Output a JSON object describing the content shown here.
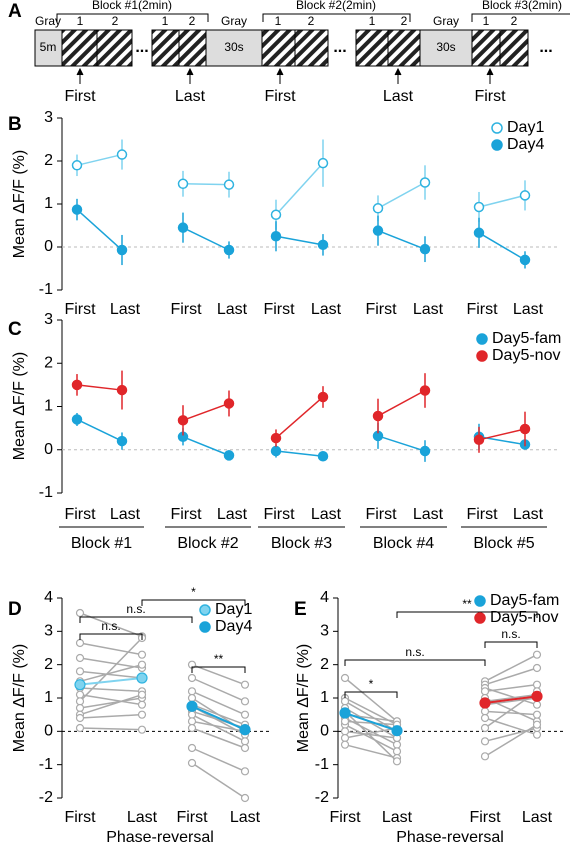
{
  "protocol": {
    "panel": "A",
    "gray": "Gray",
    "gray_first": "5m",
    "gray_between": "30s",
    "blocks": [
      "Block #1(2min)",
      "Block #2(2min)",
      "Block #3(2min)"
    ],
    "phases": [
      "1",
      "2"
    ],
    "ellipsis": "...",
    "markers": [
      "First",
      "Last",
      "First",
      "Last",
      "First"
    ]
  },
  "chart_data": [
    {
      "panel": "B",
      "type": "line",
      "ylabel": "Mean ΔF/F (%)",
      "categories": [
        "First",
        "Last",
        "First",
        "Last",
        "First",
        "Last",
        "First",
        "Last",
        "First",
        "Last"
      ],
      "ylim": [
        -1,
        3
      ],
      "yticks": [
        -1,
        0,
        1,
        2,
        3
      ],
      "zero_line": true,
      "legend": "top-right",
      "series": [
        {
          "name": "Day1",
          "color": "#7fd3ef",
          "marker": "open",
          "values": [
            1.9,
            2.15,
            1.47,
            1.45,
            0.75,
            1.95,
            0.9,
            1.5,
            0.93,
            1.2
          ],
          "errors": [
            0.25,
            0.35,
            0.3,
            0.3,
            0.35,
            0.55,
            0.3,
            0.4,
            0.35,
            0.35
          ]
        },
        {
          "name": "Day4",
          "color": "#1aa3d9",
          "marker": "filled",
          "values": [
            0.87,
            -0.07,
            0.45,
            -0.07,
            0.25,
            0.05,
            0.38,
            -0.05,
            0.33,
            -0.3
          ],
          "errors": [
            0.25,
            0.35,
            0.35,
            0.2,
            0.35,
            0.25,
            0.35,
            0.3,
            0.35,
            0.2
          ]
        }
      ]
    },
    {
      "panel": "C",
      "type": "line",
      "ylabel": "Mean ΔF/F (%)",
      "categories": [
        "First",
        "Last",
        "First",
        "Last",
        "First",
        "Last",
        "First",
        "Last",
        "First",
        "Last"
      ],
      "group_labels": [
        "Block #1",
        "Block #2",
        "Block #3",
        "Block #4",
        "Block #5"
      ],
      "ylim": [
        -1,
        3
      ],
      "yticks": [
        -1,
        0,
        1,
        2,
        3
      ],
      "zero_line": true,
      "legend": "top-right",
      "series": [
        {
          "name": "Day5-fam",
          "color": "#1aa3d9",
          "marker": "filled",
          "values": [
            0.7,
            0.2,
            0.3,
            -0.13,
            -0.03,
            -0.15,
            0.32,
            -0.03,
            0.3,
            0.12
          ],
          "errors": [
            0.15,
            0.2,
            0.2,
            0.12,
            0.15,
            0.08,
            0.3,
            0.25,
            0.3,
            0.1
          ]
        },
        {
          "name": "Day5-nov",
          "color": "#e0262a",
          "marker": "filled",
          "values": [
            1.5,
            1.38,
            0.68,
            1.07,
            0.27,
            1.22,
            0.78,
            1.37,
            0.23,
            0.48
          ],
          "errors": [
            0.25,
            0.45,
            0.35,
            0.3,
            0.2,
            0.25,
            0.4,
            0.4,
            0.3,
            0.4
          ]
        }
      ]
    },
    {
      "panel": "D",
      "type": "paired",
      "ylabel": "Mean ΔF/F (%)",
      "xlabel": "Phase-reversal",
      "categories": [
        "First",
        "Last",
        "First",
        "Last"
      ],
      "ylim": [
        -2,
        4
      ],
      "yticks": [
        -2,
        -1,
        0,
        1,
        2,
        3,
        4
      ],
      "zero_line": true,
      "legend": "top-right",
      "individual_color": "#aaaaaa",
      "individuals": [
        [
          3.55,
          2.85,
          null,
          null
        ],
        [
          2.65,
          2.3,
          null,
          null
        ],
        [
          2.2,
          1.9,
          null,
          null
        ],
        [
          1.8,
          1.6,
          null,
          null
        ],
        [
          1.5,
          2.0,
          null,
          null
        ],
        [
          1.3,
          1.2,
          null,
          null
        ],
        [
          1.1,
          0.8,
          null,
          null
        ],
        [
          0.9,
          2.8,
          null,
          null
        ],
        [
          0.7,
          1.0,
          null,
          null
        ],
        [
          0.5,
          1.1,
          null,
          null
        ],
        [
          0.4,
          0.5,
          null,
          null
        ],
        [
          0.1,
          0.05,
          null,
          null
        ],
        [
          null,
          null,
          2.0,
          1.4
        ],
        [
          null,
          null,
          1.6,
          0.9
        ],
        [
          null,
          null,
          1.2,
          0.5
        ],
        [
          null,
          null,
          1.0,
          0.0
        ],
        [
          null,
          null,
          0.8,
          0.2
        ],
        [
          null,
          null,
          0.75,
          -0.1
        ],
        [
          null,
          null,
          0.6,
          0.1
        ],
        [
          null,
          null,
          0.5,
          -0.3
        ],
        [
          null,
          null,
          0.3,
          0.0
        ],
        [
          null,
          null,
          0.1,
          -0.5
        ],
        [
          null,
          null,
          -0.5,
          -1.2
        ],
        [
          null,
          null,
          -0.95,
          -2.0
        ]
      ],
      "series": [
        {
          "name": "Day1",
          "color": "#7fd3ef",
          "values": [
            1.4,
            1.6,
            null,
            null
          ]
        },
        {
          "name": "Day4",
          "color": "#1aa3d9",
          "values": [
            null,
            null,
            0.75,
            0.05
          ]
        }
      ],
      "annotations": [
        "n.s.",
        "n.s.",
        "*",
        "**"
      ]
    },
    {
      "panel": "E",
      "type": "paired",
      "ylabel": "Mean ΔF/F (%)",
      "xlabel": "Phase-reversal",
      "categories": [
        "First",
        "Last",
        "First",
        "Last"
      ],
      "ylim": [
        -2,
        4
      ],
      "yticks": [
        -2,
        -1,
        0,
        1,
        2,
        3,
        4
      ],
      "zero_line": true,
      "legend": "top-right",
      "individual_color": "#aaaaaa",
      "individuals": [
        [
          1.6,
          0.3,
          null,
          null
        ],
        [
          1.0,
          0.2,
          null,
          null
        ],
        [
          0.9,
          0.0,
          null,
          null
        ],
        [
          0.7,
          -0.2,
          null,
          null
        ],
        [
          0.5,
          0.3,
          null,
          null
        ],
        [
          0.4,
          -0.4,
          null,
          null
        ],
        [
          0.2,
          -0.6,
          null,
          null
        ],
        [
          0.0,
          -0.2,
          null,
          null
        ],
        [
          -0.2,
          0.1,
          null,
          null
        ],
        [
          -0.4,
          -0.8,
          null,
          null
        ],
        [
          0.6,
          -0.9,
          null,
          null
        ],
        [
          0.3,
          0.2,
          null,
          null
        ],
        [
          null,
          null,
          1.5,
          2.3
        ],
        [
          null,
          null,
          1.4,
          1.9
        ],
        [
          null,
          null,
          1.3,
          0.8
        ],
        [
          null,
          null,
          1.2,
          1.4
        ],
        [
          null,
          null,
          1.0,
          0.3
        ],
        [
          null,
          null,
          0.9,
          1.1
        ],
        [
          null,
          null,
          0.8,
          1.0
        ],
        [
          null,
          null,
          0.6,
          0.5
        ],
        [
          null,
          null,
          0.4,
          -0.1
        ],
        [
          null,
          null,
          0.1,
          1.2
        ],
        [
          null,
          null,
          -0.3,
          0.1
        ],
        [
          null,
          null,
          -0.75,
          0.2
        ]
      ],
      "series": [
        {
          "name": "Day5-fam",
          "color": "#1aa3d9",
          "values": [
            0.55,
            0.02,
            null,
            null
          ]
        },
        {
          "name": "Day5-nov",
          "color": "#e0262a",
          "values": [
            null,
            null,
            0.85,
            1.05
          ]
        }
      ],
      "annotations": [
        "*",
        "n.s.",
        "n.s.",
        "**"
      ]
    }
  ]
}
